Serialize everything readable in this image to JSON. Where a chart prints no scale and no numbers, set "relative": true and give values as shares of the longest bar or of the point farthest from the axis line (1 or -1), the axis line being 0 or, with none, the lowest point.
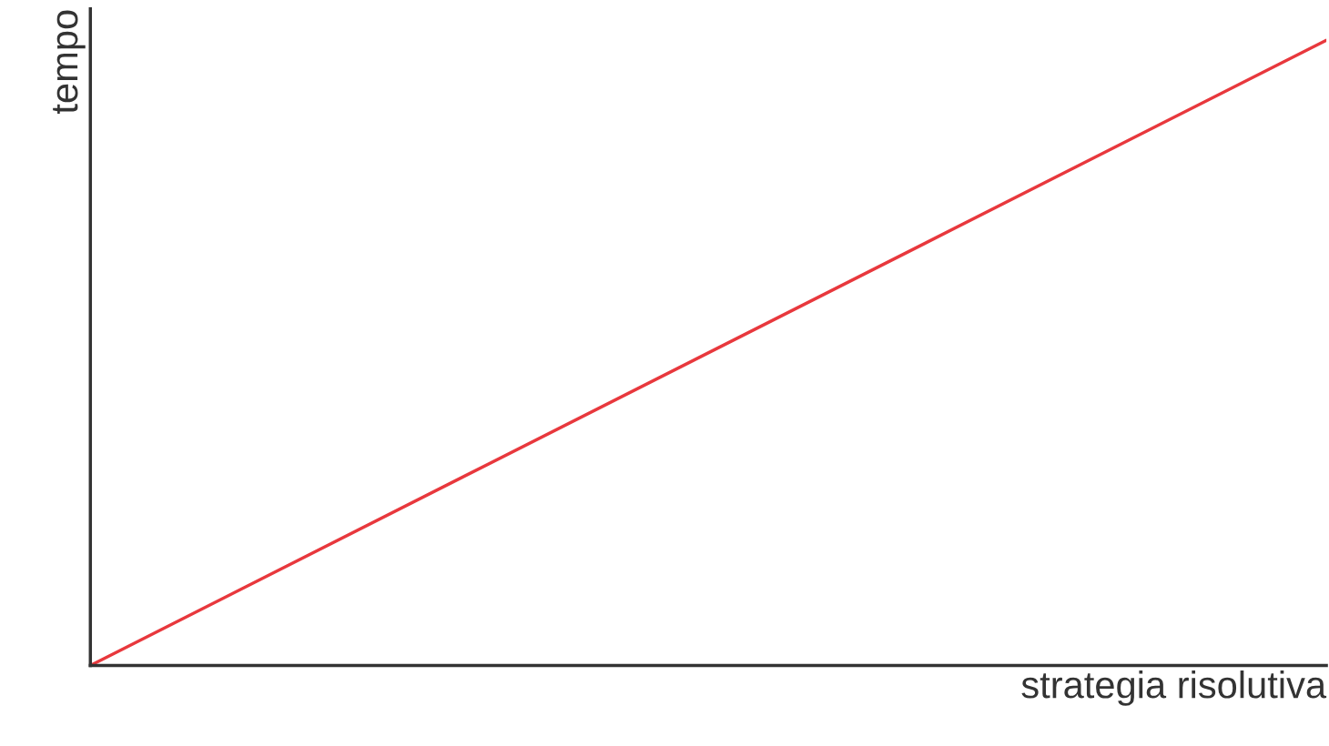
{
  "chart_data": {
    "type": "line",
    "xlabel": "strategia risolutiva",
    "ylabel": "tempo",
    "categories": [
      null,
      null
    ],
    "series": [
      {
        "color": "#e8383d",
        "values": [
          0,
          1
        ]
      }
    ],
    "relative": true,
    "grid": false,
    "legend": false,
    "marker": "none",
    "line_style": "solid",
    "tick_labels": false
  }
}
